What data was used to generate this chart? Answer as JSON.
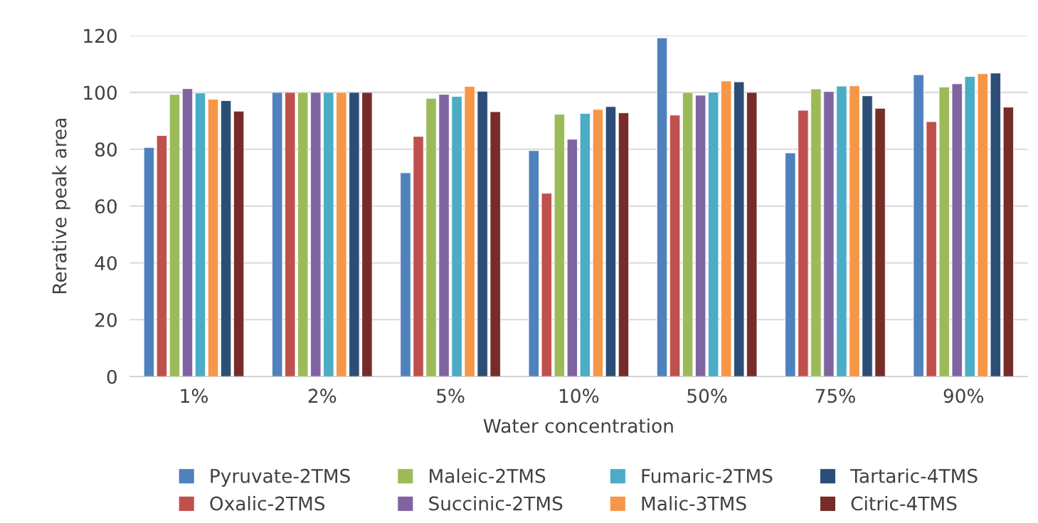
{
  "chart_data": {
    "type": "bar",
    "xlabel": "Water concentration",
    "ylabel": "Rerative peak area",
    "categories": [
      "1%",
      "2%",
      "5%",
      "10%",
      "50%",
      "75%",
      "90%"
    ],
    "series": [
      {
        "name": "Pyruvate-2TMS",
        "color": "#4f81bd",
        "values": [
          80.6,
          100,
          71.7,
          79.5,
          119.2,
          78.7,
          106.2
        ]
      },
      {
        "name": "Oxalic-2TMS",
        "color": "#c0504d",
        "values": [
          84.8,
          100,
          84.5,
          64.5,
          92.0,
          93.7,
          89.7
        ]
      },
      {
        "name": "Maleic-2TMS",
        "color": "#9bbb59",
        "values": [
          99.3,
          100,
          97.9,
          92.3,
          100.0,
          101.2,
          101.9
        ]
      },
      {
        "name": "Succinic-2TMS",
        "color": "#8064a2",
        "values": [
          101.3,
          100,
          99.3,
          83.5,
          99.0,
          100.3,
          103.0
        ]
      },
      {
        "name": "Fumaric-2TMS",
        "color": "#4bacc6",
        "values": [
          99.8,
          100,
          98.6,
          92.6,
          100.1,
          102.2,
          105.6
        ]
      },
      {
        "name": "Malic-3TMS",
        "color": "#f79646",
        "values": [
          97.6,
          100,
          102.1,
          94.0,
          104.0,
          102.3,
          106.6
        ]
      },
      {
        "name": "Tartaric-4TMS",
        "color": "#2c4d75",
        "values": [
          97.1,
          100,
          100.4,
          95.0,
          103.7,
          98.8,
          106.8
        ]
      },
      {
        "name": "Citric-4TMS",
        "color": "#772c2a",
        "values": [
          93.4,
          100,
          93.2,
          92.8,
          100.0,
          94.4,
          94.8
        ]
      }
    ],
    "ylim": [
      0,
      120
    ],
    "yticks": [
      0,
      20,
      40,
      60,
      80,
      100,
      120
    ],
    "grid": "y",
    "legend": "bottom"
  }
}
